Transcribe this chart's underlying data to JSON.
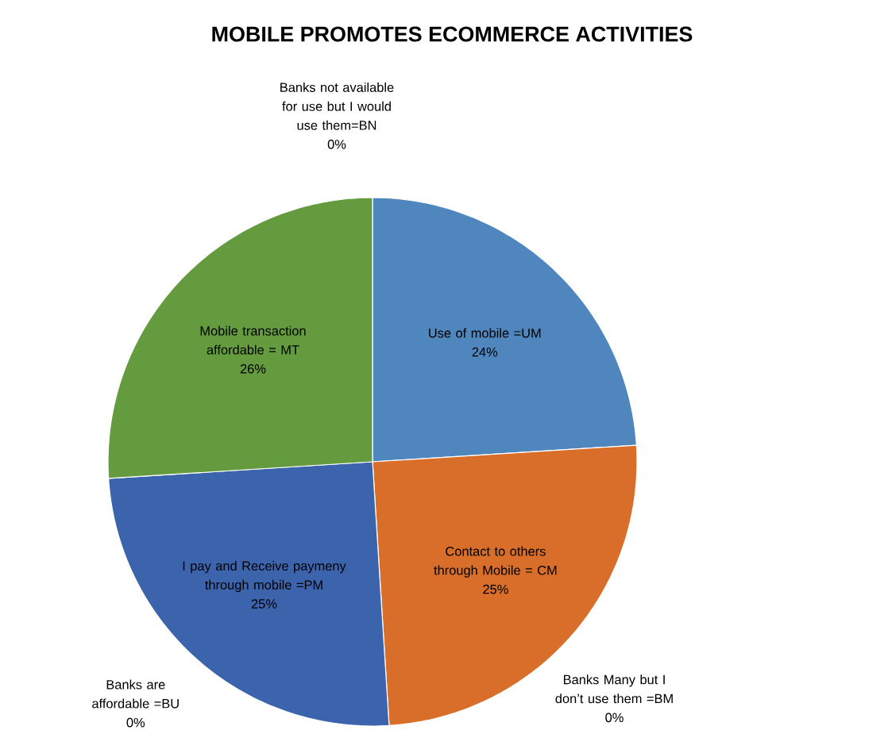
{
  "chart_data": {
    "type": "pie",
    "title": "MOBILE  PROMOTES ECOMMERCE ACTIVITIES",
    "categories": [
      "Use of mobile =UM",
      "Contact to others through Mobile = CM",
      "Banks Many but I don’t  use them =BM",
      "I pay and Receive paymeny through mobile =PM",
      "Banks are affordable =BU",
      "Mobile transaction affordable = MT",
      "Banks not available for use but I would use them=BN"
    ],
    "values": [
      24,
      25,
      0,
      25,
      0,
      26,
      0
    ],
    "value_labels": [
      "24%",
      "25%",
      "0%",
      "25%",
      "0%",
      "26%",
      "0%"
    ],
    "colors": [
      "#4f86be",
      "#d86e2a",
      "#a5a5a5",
      "#3c64ad",
      "#f2b800",
      "#659b3f",
      "#7099cc"
    ]
  }
}
